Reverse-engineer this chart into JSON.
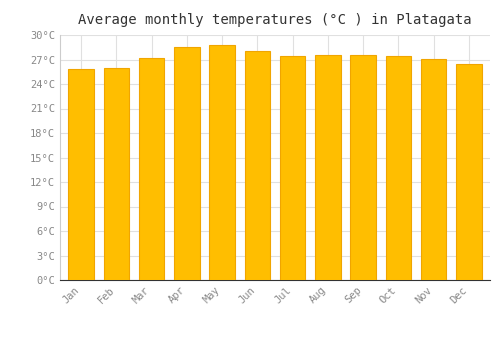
{
  "title": "Average monthly temperatures (°C ) in Platagata",
  "months": [
    "Jan",
    "Feb",
    "Mar",
    "Apr",
    "May",
    "Jun",
    "Jul",
    "Aug",
    "Sep",
    "Oct",
    "Nov",
    "Dec"
  ],
  "values": [
    25.8,
    26.0,
    27.2,
    28.5,
    28.8,
    28.1,
    27.4,
    27.5,
    27.5,
    27.4,
    27.1,
    26.4
  ],
  "bar_color_main": "#FFBE00",
  "bar_color_edge": "#F0A500",
  "ylim": [
    0,
    30
  ],
  "yticks": [
    0,
    3,
    6,
    9,
    12,
    15,
    18,
    21,
    24,
    27,
    30
  ],
  "ytick_labels": [
    "0°C",
    "3°C",
    "6°C",
    "9°C",
    "12°C",
    "15°C",
    "18°C",
    "21°C",
    "24°C",
    "27°C",
    "30°C"
  ],
  "background_color": "#ffffff",
  "grid_color": "#e0e0e0",
  "title_fontsize": 10,
  "tick_fontsize": 7.5,
  "font_family": "monospace"
}
